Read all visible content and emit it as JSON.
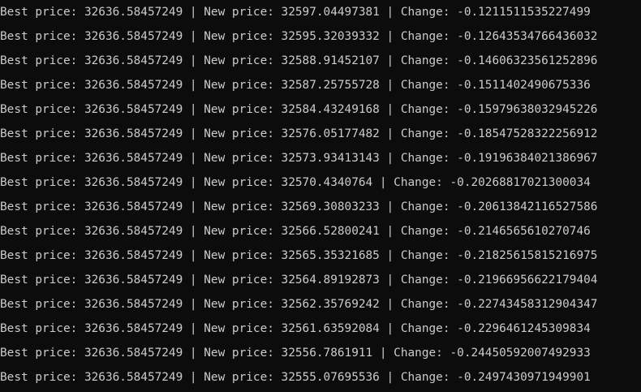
{
  "terminal": {
    "lines": [
      "Best price: 32636.58457249 | New price: 32597.04497381 | Change: -0.1211511535227499",
      "Best price: 32636.58457249 | New price: 32595.32039332 | Change: -0.12643534766436032",
      "Best price: 32636.58457249 | New price: 32588.91452107 | Change: -0.14606323561252896",
      "Best price: 32636.58457249 | New price: 32587.25755728 | Change: -0.1511402490675336",
      "Best price: 32636.58457249 | New price: 32584.43249168 | Change: -0.15979638032945226",
      "Best price: 32636.58457249 | New price: 32576.05177482 | Change: -0.18547528322256912",
      "Best price: 32636.58457249 | New price: 32573.93413143 | Change: -0.19196384021386967",
      "Best price: 32636.58457249 | New price: 32570.4340764 | Change: -0.20268817021300034",
      "Best price: 32636.58457249 | New price: 32569.30803233 | Change: -0.20613842116527586",
      "Best price: 32636.58457249 | New price: 32566.52800241 | Change: -0.2146565610270746",
      "Best price: 32636.58457249 | New price: 32565.35321685 | Change: -0.21825615815216975",
      "Best price: 32636.58457249 | New price: 32564.89192873 | Change: -0.21966956622179404",
      "Best price: 32636.58457249 | New price: 32562.35769242 | Change: -0.22743458312904347",
      "Best price: 32636.58457249 | New price: 32561.63592084 | Change: -0.2296461245309834",
      "Best price: 32636.58457249 | New price: 32556.7861911 | Change: -0.24450592007492933",
      "Best price: 32636.58457249 | New price: 32555.07695536 | Change: -0.2497430971949901"
    ]
  }
}
